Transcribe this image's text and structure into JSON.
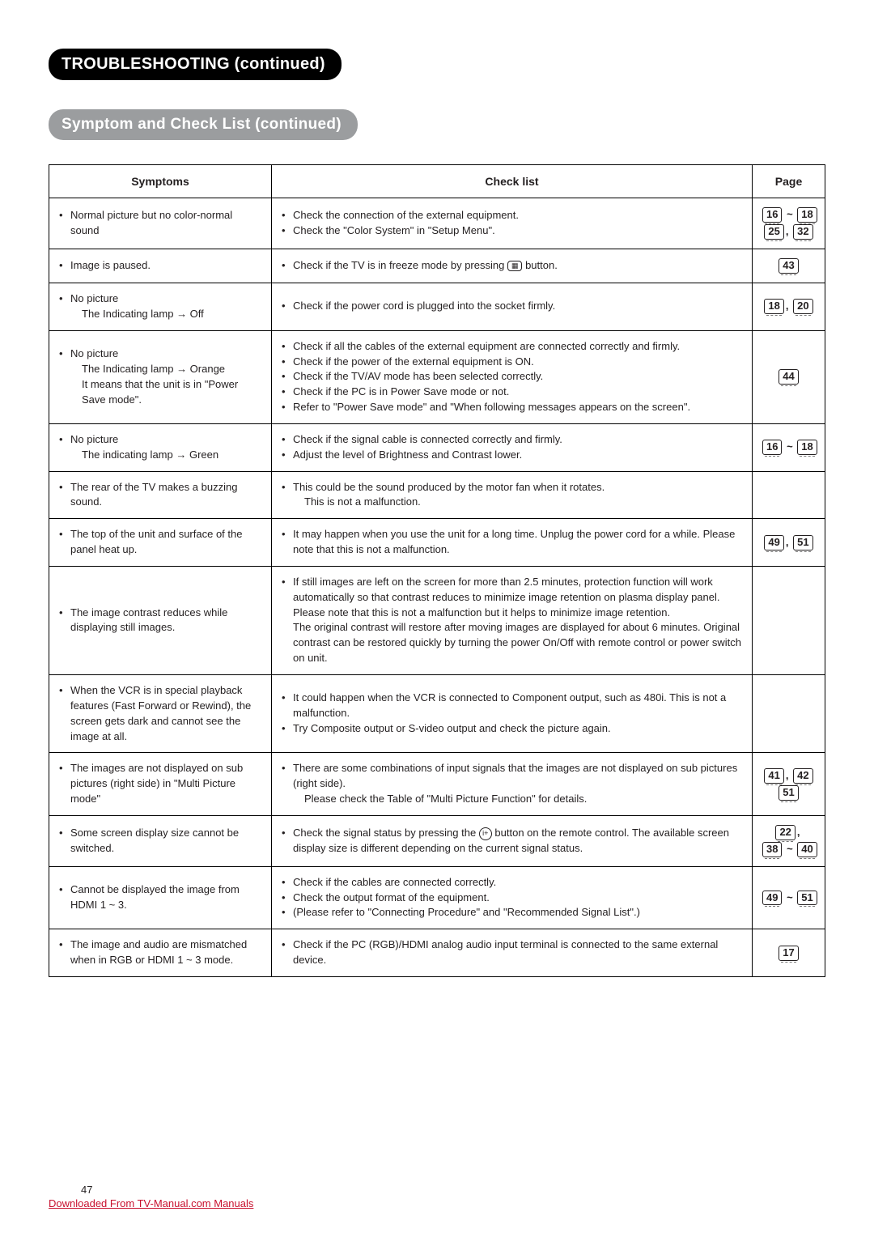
{
  "headings": {
    "main": "TROUBLESHOOTING (continued)",
    "sub": "Symptom and Check List (continued)"
  },
  "columns": {
    "sym": "Symptoms",
    "check": "Check list",
    "page": "Page"
  },
  "rows": [
    {
      "sym": [
        {
          "b": "•",
          "t": "Normal picture but no color-normal sound"
        }
      ],
      "check": [
        {
          "b": "•",
          "t": "Check the connection of the external equipment."
        },
        {
          "b": "•",
          "t": "Check the \"Color System\" in \"Setup Menu\"."
        }
      ],
      "pages": [
        "16",
        "~",
        "18",
        "BR",
        "25",
        ",",
        "32"
      ]
    },
    {
      "sym": [
        {
          "b": "•",
          "t": "Image is paused."
        }
      ],
      "check": [
        {
          "b": "•",
          "t": "Check if the TV is in freeze mode by pressing {ICON_FREEZE} button."
        }
      ],
      "pages": [
        "43"
      ]
    },
    {
      "sym": [
        {
          "b": "•",
          "t": "No picture"
        },
        {
          "b": "",
          "t": "The Indicating lamp → Off"
        }
      ],
      "check": [
        {
          "b": "•",
          "t": "Check if the power cord is plugged into the socket firmly."
        }
      ],
      "pages": [
        "18",
        ",",
        "20"
      ]
    },
    {
      "sym": [
        {
          "b": "•",
          "t": "No picture"
        },
        {
          "b": "",
          "t": "The Indicating lamp → Orange"
        },
        {
          "b": "",
          "t": "It means that the unit is in \"Power Save mode\"."
        }
      ],
      "check": [
        {
          "b": "•",
          "t": "Check if all the cables of the external equipment are connected correctly and firmly."
        },
        {
          "b": "•",
          "t": "Check if the power of the external equipment is ON."
        },
        {
          "b": "•",
          "t": "Check if the TV/AV mode has been selected correctly."
        },
        {
          "b": "•",
          "t": "Check if the PC is in Power Save mode or not."
        },
        {
          "b": "•",
          "t": "Refer to \"Power Save mode\" and \"When following messages appears on the screen\"."
        }
      ],
      "pages": [
        "44"
      ]
    },
    {
      "sym": [
        {
          "b": "•",
          "t": "No picture"
        },
        {
          "b": "",
          "t": "The indicating lamp → Green"
        }
      ],
      "check": [
        {
          "b": "•",
          "t": "Check if the signal cable is connected correctly and firmly."
        },
        {
          "b": "•",
          "t": "Adjust the level of Brightness and Contrast lower."
        }
      ],
      "pages": [
        "16",
        "~",
        "18"
      ]
    },
    {
      "sym": [
        {
          "b": "•",
          "t": "The rear of the TV makes a buzzing sound."
        }
      ],
      "check": [
        {
          "b": "•",
          "t": "This could be the sound produced by the motor fan when it rotates."
        },
        {
          "b": "",
          "t": "This is not a malfunction."
        }
      ],
      "pages": []
    },
    {
      "sym": [
        {
          "b": "•",
          "t": "The top of the unit and surface of the panel heat up."
        }
      ],
      "check": [
        {
          "b": "•",
          "t": "It may happen when you use the unit for a long time. Unplug the power cord for a while. Please note that this is not a malfunction."
        }
      ],
      "pages": [
        "49",
        ",",
        "51"
      ]
    },
    {
      "sym": [
        {
          "b": "•",
          "t": "The image contrast reduces while displaying still images."
        }
      ],
      "check": [
        {
          "b": "•",
          "t": "If still images are left on the screen for more than 2.5 minutes, protection function will work automatically so that contrast reduces to minimize image retention on plasma display panel. Please note that this is not a malfunction but it helps to minimize image retention.\nThe original contrast will restore after moving images are displayed for about 6 minutes. Original contrast can be restored quickly by turning the power On/Off with remote control or power switch on unit."
        }
      ],
      "pages": []
    },
    {
      "sym": [
        {
          "b": "•",
          "t": "When the VCR is in special playback features (Fast Forward or Rewind), the screen gets dark and cannot see the image at all."
        }
      ],
      "check": [
        {
          "b": "•",
          "t": "It could happen when the VCR is connected to Component output, such as 480i.  This is not a malfunction."
        },
        {
          "b": "•",
          "t": "Try Composite output or S-video output and check the picture again."
        }
      ],
      "pages": []
    },
    {
      "sym": [
        {
          "b": "•",
          "t": "The images are not displayed on sub pictures (right side) in \"Multi Picture mode\""
        }
      ],
      "check": [
        {
          "b": "•",
          "t": "There are some combinations of input signals that the images are not displayed on sub pictures (right side)."
        },
        {
          "b": "",
          "t": "Please check the Table of \"Multi Picture Function\" for details."
        }
      ],
      "pages": [
        "41",
        ",",
        "42",
        "BR",
        "51"
      ]
    },
    {
      "sym": [
        {
          "b": "•",
          "t": "Some screen display size cannot be switched."
        }
      ],
      "check": [
        {
          "b": "•",
          "t": "Check the signal status by pressing the {ICON_INFO} button on the remote control. The available screen display size is different depending on the current signal status."
        }
      ],
      "pages": [
        "22",
        ",",
        "BR",
        "38",
        "~",
        "40"
      ]
    },
    {
      "sym": [
        {
          "b": "•",
          "t": "Cannot be displayed the image from HDMI 1 ~ 3."
        }
      ],
      "check": [
        {
          "b": "•",
          "t": "Check if the cables are connected correctly."
        },
        {
          "b": "•",
          "t": "Check the output format of the equipment."
        },
        {
          "b": "•",
          "t": "(Please refer to \"Connecting Procedure\" and \"Recommended Signal List\".)"
        }
      ],
      "pages": [
        "49",
        "~",
        "51"
      ]
    },
    {
      "sym": [
        {
          "b": "•",
          "t": "The image and audio are mismatched when in RGB or HDMI 1 ~ 3 mode."
        }
      ],
      "check": [
        {
          "b": "•",
          "t": "Check if the PC (RGB)/HDMI analog audio input terminal is connected to the same external device."
        }
      ],
      "pages": [
        "17"
      ]
    }
  ],
  "footer": {
    "pagenum": "47",
    "download": "Downloaded From TV-Manual.com Manuals"
  }
}
